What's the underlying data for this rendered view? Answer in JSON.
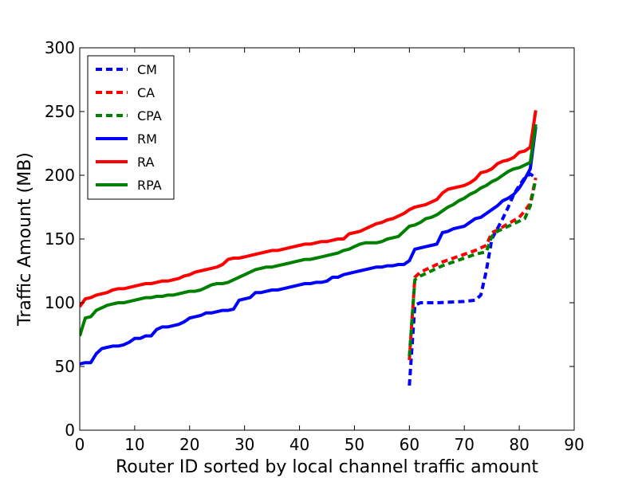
{
  "chart_data": {
    "type": "line",
    "title": "",
    "xlabel": "Router ID sorted by local channel traffic amount",
    "ylabel": "Traffic Amount (MB)",
    "xlim": [
      0,
      90
    ],
    "ylim": [
      0,
      300
    ],
    "xticks": [
      "0",
      "10",
      "20",
      "30",
      "40",
      "50",
      "60",
      "70",
      "80",
      "90"
    ],
    "yticks": [
      "0",
      "50",
      "100",
      "150",
      "200",
      "250",
      "300"
    ],
    "grid": false,
    "legend_position": "top-left",
    "series": [
      {
        "name": "CM",
        "style": "dashed",
        "color": "#0000ff",
        "x": [
          60,
          61,
          62,
          65,
          70,
          72,
          73,
          74,
          75,
          76,
          77,
          78,
          79,
          80,
          81,
          82,
          83
        ],
        "y": [
          35,
          98,
          100,
          100,
          101,
          102,
          106,
          125,
          150,
          158,
          166,
          175,
          185,
          192,
          198,
          201,
          198
        ]
      },
      {
        "name": "CA",
        "style": "dashed",
        "color": "#ff0000",
        "x": [
          60,
          61,
          62,
          64,
          66,
          68,
          70,
          72,
          74,
          75,
          76,
          78,
          80,
          81,
          82,
          83
        ],
        "y": [
          55,
          120,
          124,
          128,
          132,
          135,
          138,
          141,
          145,
          155,
          157,
          162,
          167,
          172,
          178,
          198
        ]
      },
      {
        "name": "CPA",
        "style": "dashed",
        "color": "#008000",
        "x": [
          60,
          61,
          62,
          64,
          66,
          68,
          70,
          72,
          74,
          75,
          76,
          78,
          80,
          81,
          82,
          83
        ],
        "y": [
          58,
          118,
          121,
          125,
          129,
          132,
          135,
          138,
          140,
          152,
          156,
          160,
          164,
          166,
          176,
          197
        ]
      },
      {
        "name": "RM",
        "style": "solid",
        "color": "#0000ff",
        "x": [
          0,
          1,
          2,
          3,
          4,
          5,
          6,
          7,
          8,
          9,
          10,
          11,
          12,
          13,
          14,
          15,
          16,
          17,
          18,
          19,
          20,
          21,
          22,
          23,
          24,
          25,
          26,
          27,
          28,
          29,
          30,
          31,
          32,
          33,
          34,
          35,
          36,
          37,
          38,
          39,
          40,
          41,
          42,
          43,
          44,
          45,
          46,
          47,
          48,
          49,
          50,
          51,
          52,
          53,
          54,
          55,
          56,
          57,
          58,
          59,
          60,
          61,
          62,
          63,
          64,
          65,
          66,
          67,
          68,
          69,
          70,
          71,
          72,
          73,
          74,
          75,
          76,
          77,
          78,
          79,
          80,
          81,
          82,
          83
        ],
        "y": [
          52,
          53,
          53,
          60,
          64,
          65,
          66,
          66,
          67,
          69,
          72,
          72,
          74,
          74,
          79,
          81,
          81,
          82,
          83,
          85,
          88,
          89,
          90,
          92,
          92,
          93,
          94,
          94,
          95,
          102,
          103,
          104,
          108,
          108,
          109,
          110,
          110,
          111,
          112,
          113,
          114,
          115,
          115,
          116,
          116,
          117,
          120,
          120,
          122,
          123,
          124,
          125,
          126,
          127,
          128,
          128,
          129,
          129,
          130,
          130,
          133,
          142,
          143,
          144,
          145,
          146,
          155,
          156,
          158,
          159,
          160,
          163,
          166,
          167,
          170,
          173,
          176,
          180,
          182,
          185,
          190,
          197,
          205,
          238
        ]
      },
      {
        "name": "RA",
        "style": "solid",
        "color": "#ff0000",
        "x": [
          0,
          1,
          2,
          3,
          4,
          5,
          6,
          7,
          8,
          9,
          10,
          11,
          12,
          13,
          14,
          15,
          16,
          17,
          18,
          19,
          20,
          21,
          22,
          23,
          24,
          25,
          26,
          27,
          28,
          29,
          30,
          31,
          32,
          33,
          34,
          35,
          36,
          37,
          38,
          39,
          40,
          41,
          42,
          43,
          44,
          45,
          46,
          47,
          48,
          49,
          50,
          51,
          52,
          53,
          54,
          55,
          56,
          57,
          58,
          59,
          60,
          61,
          62,
          63,
          64,
          65,
          66,
          67,
          68,
          69,
          70,
          71,
          72,
          73,
          74,
          75,
          76,
          77,
          78,
          79,
          80,
          81,
          82,
          83
        ],
        "y": [
          97,
          103,
          104,
          106,
          107,
          108,
          110,
          111,
          111,
          112,
          113,
          114,
          115,
          115,
          116,
          117,
          117,
          118,
          119,
          121,
          122,
          124,
          125,
          126,
          127,
          128,
          130,
          134,
          135,
          135,
          136,
          137,
          138,
          139,
          140,
          141,
          141,
          142,
          143,
          144,
          145,
          146,
          146,
          147,
          148,
          148,
          149,
          150,
          150,
          154,
          155,
          156,
          158,
          160,
          162,
          163,
          165,
          166,
          168,
          170,
          173,
          175,
          176,
          177,
          179,
          181,
          186,
          189,
          190,
          191,
          192,
          194,
          197,
          202,
          203,
          205,
          209,
          211,
          212,
          214,
          218,
          219,
          222,
          251
        ]
      },
      {
        "name": "RPA",
        "style": "solid",
        "color": "#008000",
        "x": [
          0,
          1,
          2,
          3,
          4,
          5,
          6,
          7,
          8,
          9,
          10,
          11,
          12,
          13,
          14,
          15,
          16,
          17,
          18,
          19,
          20,
          21,
          22,
          23,
          24,
          25,
          26,
          27,
          28,
          29,
          30,
          31,
          32,
          33,
          34,
          35,
          36,
          37,
          38,
          39,
          40,
          41,
          42,
          43,
          44,
          45,
          46,
          47,
          48,
          49,
          50,
          51,
          52,
          53,
          54,
          55,
          56,
          57,
          58,
          59,
          60,
          61,
          62,
          63,
          64,
          65,
          66,
          67,
          68,
          69,
          70,
          71,
          72,
          73,
          74,
          75,
          76,
          77,
          78,
          79,
          80,
          81,
          82,
          83
        ],
        "y": [
          74,
          88,
          89,
          94,
          96,
          98,
          99,
          100,
          100,
          101,
          102,
          103,
          104,
          104,
          105,
          105,
          106,
          106,
          107,
          108,
          109,
          109,
          110,
          112,
          114,
          115,
          115,
          116,
          118,
          120,
          122,
          124,
          126,
          127,
          128,
          128,
          129,
          130,
          131,
          132,
          133,
          134,
          134,
          135,
          136,
          137,
          138,
          139,
          141,
          142,
          144,
          146,
          147,
          147,
          147,
          148,
          150,
          151,
          152,
          156,
          160,
          161,
          163,
          166,
          167,
          169,
          172,
          175,
          177,
          180,
          182,
          185,
          187,
          190,
          192,
          195,
          197,
          200,
          203,
          205,
          206,
          208,
          210,
          240
        ]
      }
    ]
  }
}
